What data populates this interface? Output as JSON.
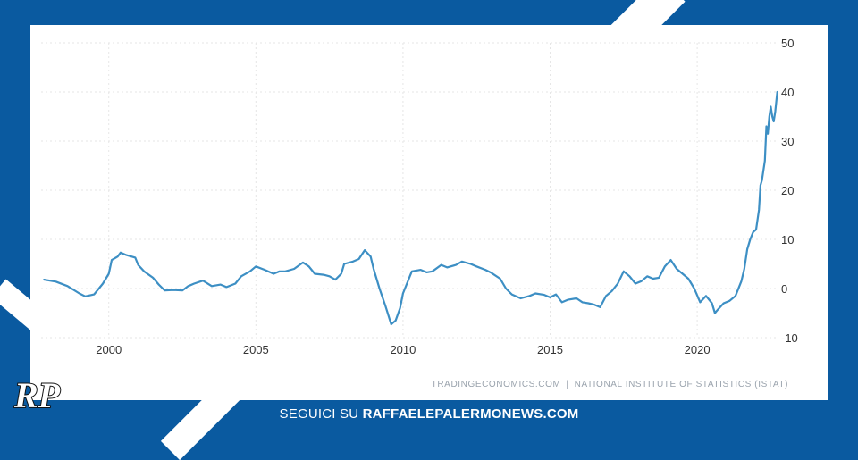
{
  "footer": {
    "lead": "SEGUICI SU",
    "site": "RAFFAELEPALERMONEWS.COM"
  },
  "logo": {
    "text": "RP"
  },
  "source": {
    "left": "TRADINGECONOMICS.COM",
    "separator": "|",
    "right": "NATIONAL INSTITUTE OF STATISTICS (ISTAT)"
  },
  "colors": {
    "background": "#0a5aa0",
    "line": "#3d8fc4",
    "grid": "#e6e6e6"
  },
  "chart_data": {
    "type": "line",
    "title": "",
    "xlabel": "",
    "ylabel": "",
    "xlim": [
      1997.7,
      2022.7
    ],
    "ylim": [
      -10,
      50
    ],
    "x_ticks": [
      2000,
      2005,
      2010,
      2015,
      2020
    ],
    "y_ticks": [
      50,
      40,
      30,
      20,
      10,
      0,
      -10
    ],
    "grid": true,
    "legend": "none",
    "series": [
      {
        "values": [
          [
            1997.8,
            1.8
          ],
          [
            1998.2,
            1.4
          ],
          [
            1998.6,
            0.5
          ],
          [
            1999.0,
            -1.0
          ],
          [
            1999.2,
            -1.6
          ],
          [
            1999.5,
            -1.2
          ],
          [
            1999.8,
            1.0
          ],
          [
            2000.0,
            3.0
          ],
          [
            2000.1,
            5.8
          ],
          [
            2000.3,
            6.5
          ],
          [
            2000.4,
            7.3
          ],
          [
            2000.6,
            6.8
          ],
          [
            2000.9,
            6.3
          ],
          [
            2001.0,
            4.8
          ],
          [
            2001.2,
            3.5
          ],
          [
            2001.5,
            2.2
          ],
          [
            2001.7,
            0.8
          ],
          [
            2001.9,
            -0.4
          ],
          [
            2002.2,
            -0.3
          ],
          [
            2002.5,
            -0.4
          ],
          [
            2002.7,
            0.5
          ],
          [
            2002.9,
            1.0
          ],
          [
            2003.2,
            1.6
          ],
          [
            2003.5,
            0.5
          ],
          [
            2003.8,
            0.8
          ],
          [
            2004.0,
            0.3
          ],
          [
            2004.3,
            1.0
          ],
          [
            2004.5,
            2.5
          ],
          [
            2004.8,
            3.5
          ],
          [
            2005.0,
            4.5
          ],
          [
            2005.3,
            3.8
          ],
          [
            2005.6,
            3.0
          ],
          [
            2005.8,
            3.5
          ],
          [
            2006.0,
            3.5
          ],
          [
            2006.3,
            4.0
          ],
          [
            2006.6,
            5.3
          ],
          [
            2006.8,
            4.5
          ],
          [
            2007.0,
            3.0
          ],
          [
            2007.3,
            2.8
          ],
          [
            2007.5,
            2.5
          ],
          [
            2007.7,
            1.8
          ],
          [
            2007.9,
            3.0
          ],
          [
            2008.0,
            5.0
          ],
          [
            2008.3,
            5.5
          ],
          [
            2008.5,
            6.0
          ],
          [
            2008.7,
            7.8
          ],
          [
            2008.9,
            6.5
          ],
          [
            2009.0,
            4.0
          ],
          [
            2009.2,
            0.0
          ],
          [
            2009.4,
            -3.5
          ],
          [
            2009.6,
            -7.3
          ],
          [
            2009.75,
            -6.5
          ],
          [
            2009.9,
            -4.0
          ],
          [
            2010.0,
            -1.0
          ],
          [
            2010.2,
            2.0
          ],
          [
            2010.3,
            3.5
          ],
          [
            2010.6,
            3.8
          ],
          [
            2010.8,
            3.3
          ],
          [
            2011.0,
            3.5
          ],
          [
            2011.3,
            4.8
          ],
          [
            2011.5,
            4.3
          ],
          [
            2011.8,
            4.8
          ],
          [
            2012.0,
            5.5
          ],
          [
            2012.3,
            5.0
          ],
          [
            2012.5,
            4.5
          ],
          [
            2012.8,
            3.8
          ],
          [
            2013.0,
            3.2
          ],
          [
            2013.3,
            2.0
          ],
          [
            2013.5,
            0.0
          ],
          [
            2013.7,
            -1.2
          ],
          [
            2014.0,
            -2.0
          ],
          [
            2014.3,
            -1.5
          ],
          [
            2014.5,
            -1.0
          ],
          [
            2014.8,
            -1.3
          ],
          [
            2015.0,
            -1.8
          ],
          [
            2015.2,
            -1.2
          ],
          [
            2015.4,
            -2.8
          ],
          [
            2015.6,
            -2.3
          ],
          [
            2015.9,
            -2.0
          ],
          [
            2016.1,
            -2.8
          ],
          [
            2016.3,
            -3.0
          ],
          [
            2016.5,
            -3.3
          ],
          [
            2016.7,
            -3.8
          ],
          [
            2016.9,
            -1.5
          ],
          [
            2017.1,
            -0.5
          ],
          [
            2017.3,
            1.0
          ],
          [
            2017.5,
            3.5
          ],
          [
            2017.7,
            2.5
          ],
          [
            2017.9,
            1.0
          ],
          [
            2018.1,
            1.5
          ],
          [
            2018.3,
            2.5
          ],
          [
            2018.5,
            2.0
          ],
          [
            2018.7,
            2.2
          ],
          [
            2018.9,
            4.5
          ],
          [
            2019.1,
            5.8
          ],
          [
            2019.3,
            4.0
          ],
          [
            2019.5,
            3.0
          ],
          [
            2019.7,
            2.0
          ],
          [
            2019.9,
            0.0
          ],
          [
            2020.1,
            -2.8
          ],
          [
            2020.3,
            -1.5
          ],
          [
            2020.5,
            -3.0
          ],
          [
            2020.6,
            -5.0
          ],
          [
            2020.7,
            -4.3
          ],
          [
            2020.9,
            -3.0
          ],
          [
            2021.1,
            -2.5
          ],
          [
            2021.3,
            -1.5
          ],
          [
            2021.5,
            1.5
          ],
          [
            2021.6,
            4.0
          ],
          [
            2021.7,
            8.0
          ],
          [
            2021.8,
            10.0
          ],
          [
            2021.9,
            11.5
          ],
          [
            2022.0,
            12.0
          ],
          [
            2022.1,
            16.0
          ],
          [
            2022.15,
            21.0
          ],
          [
            2022.2,
            22.0
          ],
          [
            2022.3,
            26.0
          ],
          [
            2022.35,
            33.0
          ],
          [
            2022.4,
            31.5
          ],
          [
            2022.45,
            35.0
          ],
          [
            2022.5,
            37.0
          ],
          [
            2022.55,
            35.0
          ],
          [
            2022.6,
            34.0
          ],
          [
            2022.65,
            36.0
          ],
          [
            2022.72,
            40.0
          ]
        ]
      }
    ]
  }
}
